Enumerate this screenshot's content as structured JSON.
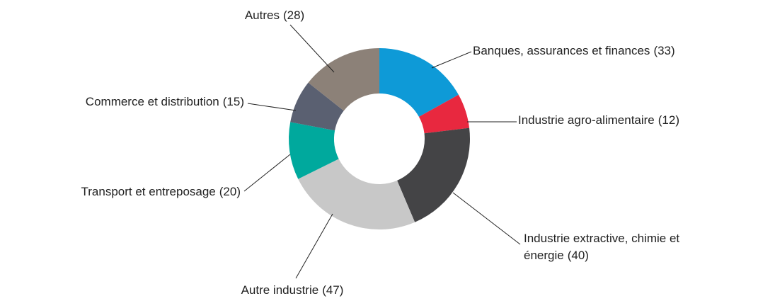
{
  "chart_data": {
    "type": "donut",
    "categories": [
      "Banques, assurances et finances",
      "Industrie agro-alimentaire",
      "Industrie extractive, chimie et énergie",
      "Autre industrie",
      "Transport et entreposage",
      "Commerce et distribution",
      "Autres"
    ],
    "values": [
      33,
      12,
      40,
      47,
      20,
      15,
      28
    ],
    "value_labels": [
      "(33)",
      "(12)",
      "(40)",
      "(47)",
      "(20)",
      "(15)",
      "(28)"
    ],
    "colors": [
      "#0e9ad7",
      "#e8283f",
      "#444446",
      "#c8c8c8",
      "#00a99d",
      "#5a6071",
      "#8c8178"
    ]
  }
}
